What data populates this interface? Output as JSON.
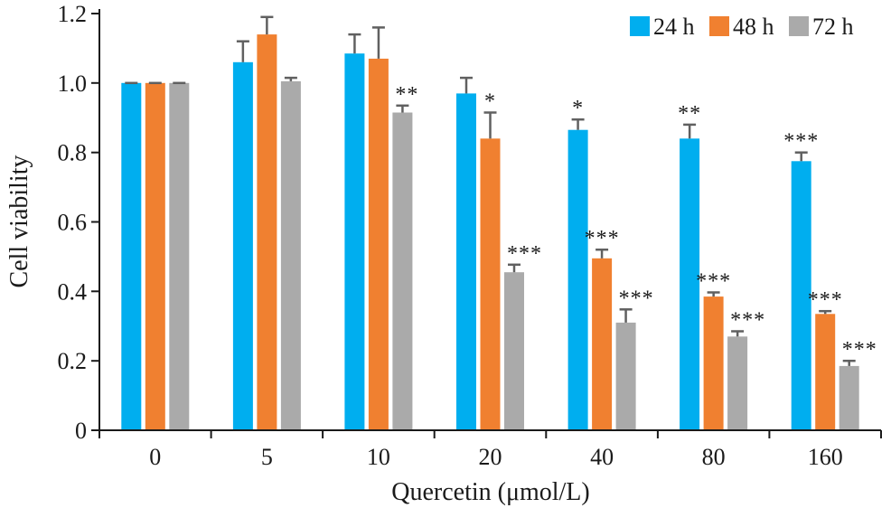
{
  "chart_data": {
    "type": "bar",
    "title": "",
    "xlabel": "Quercetin (μmol/L)",
    "ylabel": "Cell viability",
    "ylim": [
      0,
      1.2
    ],
    "y_ticks": [
      "0",
      "0.2",
      "0.4",
      "0.6",
      "0.8",
      "1.0",
      "1.2"
    ],
    "y_tick_values": [
      0,
      0.2,
      0.4,
      0.6,
      0.8,
      1.0,
      1.2
    ],
    "categories": [
      "0",
      "5",
      "10",
      "20",
      "40",
      "80",
      "160"
    ],
    "series": [
      {
        "name": "24 h",
        "color": "#00aeef",
        "values": [
          1.0,
          1.06,
          1.085,
          0.97,
          0.865,
          0.84,
          0.775
        ],
        "errors": [
          0.0,
          0.06,
          0.055,
          0.045,
          0.03,
          0.04,
          0.025
        ],
        "significance": [
          "",
          "",
          "",
          "",
          "*",
          "**",
          "***"
        ]
      },
      {
        "name": "48 h",
        "color": "#f08030",
        "values": [
          1.0,
          1.14,
          1.07,
          0.84,
          0.495,
          0.385,
          0.335
        ],
        "errors": [
          0.0,
          0.05,
          0.09,
          0.075,
          0.025,
          0.012,
          0.008
        ],
        "significance": [
          "",
          "",
          "",
          "*",
          "***",
          "***",
          "***"
        ]
      },
      {
        "name": "72 h",
        "color": "#aaaaaa",
        "values": [
          1.0,
          1.005,
          0.915,
          0.455,
          0.31,
          0.27,
          0.185
        ],
        "errors": [
          0.0,
          0.01,
          0.02,
          0.022,
          0.038,
          0.015,
          0.015
        ],
        "significance": [
          "",
          "",
          "**",
          "***",
          "***",
          "***",
          "***"
        ]
      }
    ],
    "legend": "top-right",
    "grid": false
  }
}
